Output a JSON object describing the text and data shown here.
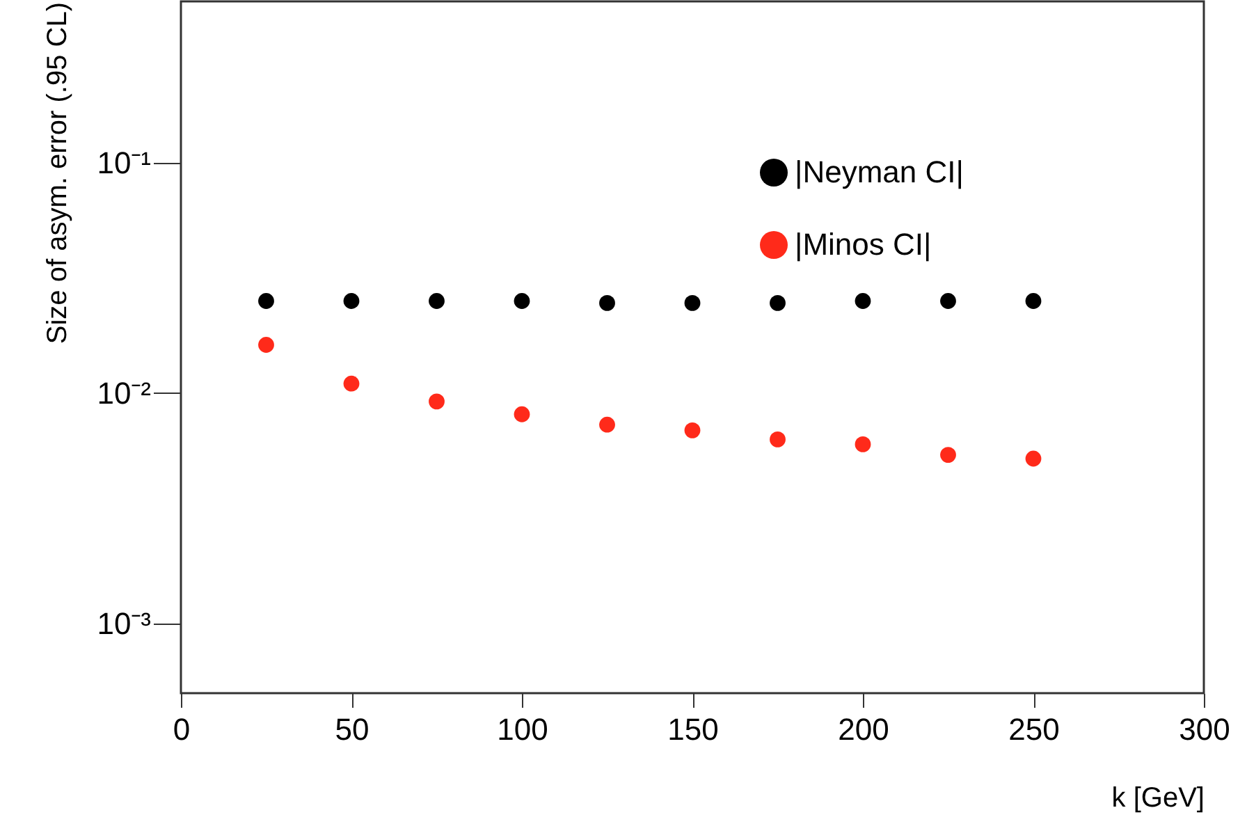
{
  "chart_data": {
    "type": "scatter",
    "xlabel": "k [GeV]",
    "ylabel": "Size of asym. error (.95 CL)",
    "x": [
      25,
      50,
      75,
      100,
      125,
      150,
      175,
      200,
      225,
      250
    ],
    "series": [
      {
        "name": "|Neyman CI|",
        "color": "#000000",
        "values": [
          0.0251,
          0.0251,
          0.0251,
          0.0251,
          0.0246,
          0.0246,
          0.0246,
          0.0251,
          0.0251,
          0.0251
        ]
      },
      {
        "name": "|Minos CI|",
        "color": "#ff2a1a",
        "values": [
          0.0162,
          0.011,
          0.0092,
          0.0081,
          0.0073,
          0.0069,
          0.0063,
          0.006,
          0.0054,
          0.0052
        ]
      }
    ],
    "xlim": [
      0,
      300
    ],
    "xticks": [
      0,
      50,
      100,
      150,
      200,
      250,
      300
    ],
    "ylim": [
      0.0005,
      0.5
    ],
    "yticks": [
      {
        "value": 0.001,
        "label": "10⁻³"
      },
      {
        "value": 0.01,
        "label": "10⁻²"
      },
      {
        "value": 0.1,
        "label": "10⁻¹"
      }
    ],
    "log": "y",
    "grid": false,
    "legend": "top right",
    "marker": "circle"
  }
}
